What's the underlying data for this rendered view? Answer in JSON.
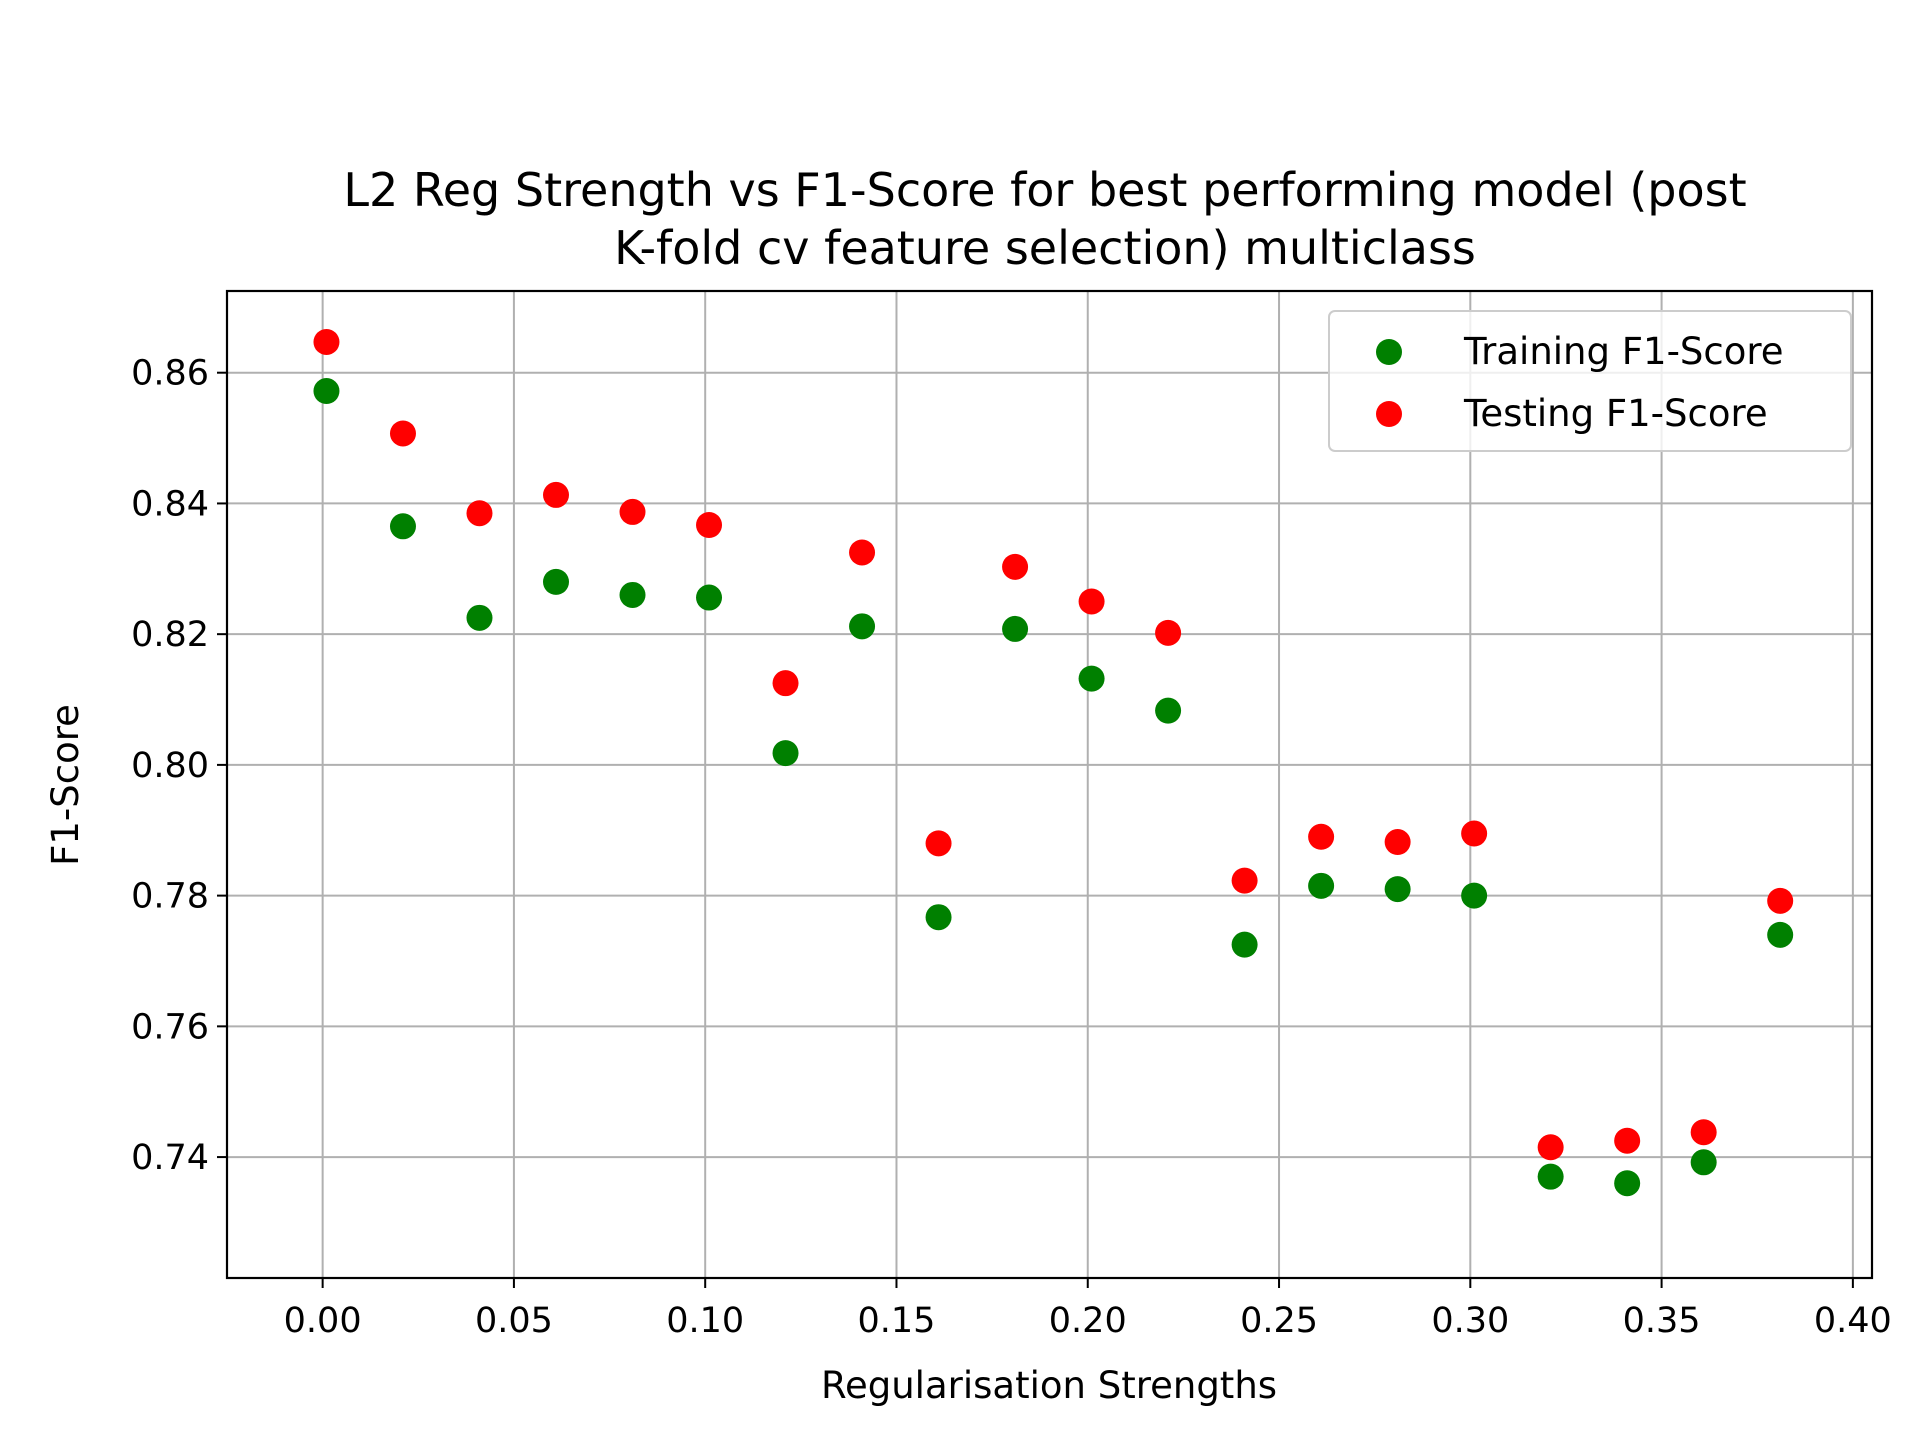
{
  "chart_data": {
    "type": "scatter",
    "title": [
      "L2 Reg Strength vs F1-Score for best performing model (post",
      "K-fold cv feature selection) multiclass"
    ],
    "xlabel": "Regularisation Strengths",
    "ylabel": "F1-Score",
    "xlim": [
      -0.025,
      0.405
    ],
    "ylim": [
      0.7215,
      0.8725
    ],
    "xticks": [
      0.0,
      0.05,
      0.1,
      0.15,
      0.2,
      0.25,
      0.3,
      0.35,
      0.4
    ],
    "xtick_labels": [
      "0.00",
      "0.05",
      "0.10",
      "0.15",
      "0.20",
      "0.25",
      "0.30",
      "0.35",
      "0.40"
    ],
    "yticks": [
      0.74,
      0.76,
      0.78,
      0.8,
      0.82,
      0.84,
      0.86
    ],
    "ytick_labels": [
      "0.74",
      "0.76",
      "0.78",
      "0.80",
      "0.82",
      "0.84",
      "0.86"
    ],
    "grid": true,
    "legend_position": "top-right",
    "x": [
      0.001,
      0.021,
      0.041,
      0.061,
      0.081,
      0.101,
      0.121,
      0.141,
      0.161,
      0.181,
      0.201,
      0.221,
      0.241,
      0.261,
      0.281,
      0.301,
      0.321,
      0.341,
      0.361,
      0.381
    ],
    "series": [
      {
        "name": "Training F1-Score",
        "color": "#008000",
        "values": [
          0.8572,
          0.8365,
          0.8225,
          0.828,
          0.826,
          0.8256,
          0.8018,
          0.8212,
          0.7767,
          0.8208,
          0.8132,
          0.8083,
          0.7725,
          0.7815,
          0.781,
          0.78,
          0.737,
          0.736,
          0.7392,
          0.774
        ]
      },
      {
        "name": "Testing F1-Score",
        "color": "#ff0000",
        "values": [
          0.8647,
          0.8507,
          0.8385,
          0.8413,
          0.8387,
          0.8367,
          0.8125,
          0.8325,
          0.788,
          0.8303,
          0.825,
          0.8202,
          0.7823,
          0.789,
          0.7882,
          0.7895,
          0.7415,
          0.7425,
          0.7438,
          0.7792
        ]
      }
    ]
  }
}
